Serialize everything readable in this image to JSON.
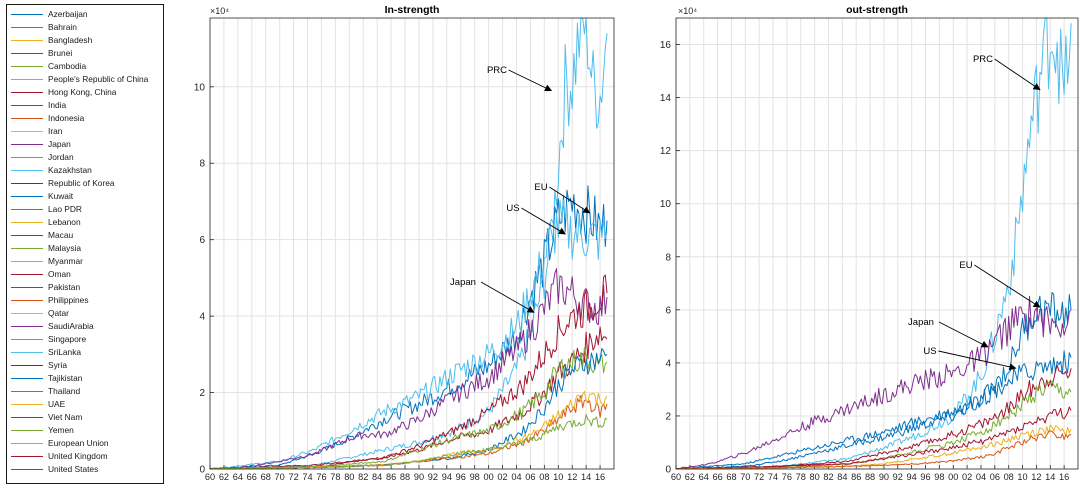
{
  "legend": [
    {
      "name": "Azerbaijan",
      "color": "#0072bd"
    },
    {
      "name": "Bahrain",
      "color": "#d95319"
    },
    {
      "name": "Bangladesh",
      "color": "#edb120"
    },
    {
      "name": "Brunei",
      "color": "#7e2f8e"
    },
    {
      "name": "Cambodia",
      "color": "#77ac30"
    },
    {
      "name": "People's Republic of China",
      "color": "#4dbeee"
    },
    {
      "name": "Hong Kong, China",
      "color": "#a2142f"
    },
    {
      "name": "India",
      "color": "#0072bd"
    },
    {
      "name": "Indonesia",
      "color": "#d95319"
    },
    {
      "name": "Iran",
      "color": "#edb120"
    },
    {
      "name": "Japan",
      "color": "#7e2f8e"
    },
    {
      "name": "Jordan",
      "color": "#77ac30"
    },
    {
      "name": "Kazakhstan",
      "color": "#4dbeee"
    },
    {
      "name": "Republic of Korea",
      "color": "#a2142f"
    },
    {
      "name": "Kuwait",
      "color": "#0072bd"
    },
    {
      "name": "Lao PDR",
      "color": "#d95319"
    },
    {
      "name": "Lebanon",
      "color": "#edb120"
    },
    {
      "name": "Macau",
      "color": "#7e2f8e"
    },
    {
      "name": "Malaysia",
      "color": "#77ac30"
    },
    {
      "name": "Myanmar",
      "color": "#4dbeee"
    },
    {
      "name": "Oman",
      "color": "#a2142f"
    },
    {
      "name": "Pakistan",
      "color": "#0072bd"
    },
    {
      "name": "Philippines",
      "color": "#d95319"
    },
    {
      "name": "Qatar",
      "color": "#edb120"
    },
    {
      "name": "SaudiArabia",
      "color": "#7e2f8e"
    },
    {
      "name": "Singapore",
      "color": "#77ac30"
    },
    {
      "name": "SriLanka",
      "color": "#4dbeee"
    },
    {
      "name": "Syria",
      "color": "#a2142f"
    },
    {
      "name": "Tajikistan",
      "color": "#0072bd"
    },
    {
      "name": "Thailand",
      "color": "#d95319"
    },
    {
      "name": "UAE",
      "color": "#edb120"
    },
    {
      "name": "Viet Nam",
      "color": "#7e2f8e"
    },
    {
      "name": "Yemen",
      "color": "#77ac30"
    },
    {
      "name": "European Union",
      "color": "#4dbeee"
    },
    {
      "name": "United Kingdom",
      "color": "#a2142f"
    },
    {
      "name": "United States",
      "color": "#0072bd"
    }
  ],
  "chart_data": [
    {
      "type": "line",
      "title": "In-strength",
      "exponent_label": "×10⁴",
      "xlabel": "",
      "ylabel": "",
      "xlim": [
        1960,
        2018
      ],
      "ylim": [
        0,
        11.8
      ],
      "x_ticks": [
        "60",
        "62",
        "64",
        "66",
        "68",
        "70",
        "72",
        "74",
        "76",
        "78",
        "80",
        "82",
        "84",
        "86",
        "88",
        "90",
        "92",
        "94",
        "96",
        "98",
        "00",
        "02",
        "04",
        "06",
        "08",
        "10",
        "12",
        "14",
        "16"
      ],
      "y_ticks": [
        0,
        2,
        4,
        6,
        8,
        10
      ],
      "grid": true,
      "series": [
        {
          "name": "People's Republic of China",
          "color": "#4dbeee",
          "x": [
            1960,
            1975,
            1985,
            1990,
            1995,
            2000,
            2004,
            2006,
            2008,
            2009,
            2010,
            2011,
            2012,
            2013,
            2014,
            2015,
            2016,
            2017
          ],
          "y": [
            0,
            0.1,
            0.5,
            0.7,
            1.0,
            1.5,
            2.6,
            3.5,
            5.0,
            6.0,
            8.0,
            10.0,
            10.2,
            11.3,
            11.8,
            10.0,
            9.8,
            11.4
          ]
        },
        {
          "name": "European Union",
          "color": "#0072bd",
          "x": [
            1960,
            1970,
            1975,
            1980,
            1985,
            1990,
            1995,
            2000,
            2004,
            2006,
            2008,
            2009,
            2010,
            2012,
            2014,
            2016,
            2017
          ],
          "y": [
            0,
            0.1,
            0.4,
            0.8,
            1.3,
            1.7,
            2.2,
            2.7,
            3.5,
            4.5,
            5.4,
            6.0,
            6.5,
            7.0,
            6.7,
            6.3,
            6.5
          ]
        },
        {
          "name": "United States",
          "color": "#4dbeee",
          "x": [
            1960,
            1970,
            1975,
            1980,
            1985,
            1990,
            1995,
            2000,
            2004,
            2006,
            2008,
            2009,
            2010,
            2012,
            2014,
            2016,
            2017
          ],
          "y": [
            0,
            0.2,
            0.5,
            1.0,
            1.5,
            1.9,
            2.5,
            3.0,
            3.7,
            4.6,
            5.5,
            6.1,
            6.4,
            6.2,
            6.1,
            6.0,
            6.2
          ]
        },
        {
          "name": "Japan",
          "color": "#7e2f8e",
          "x": [
            1960,
            1965,
            1970,
            1975,
            1980,
            1982,
            1985,
            1990,
            1995,
            2000,
            2004,
            2006,
            2008,
            2009,
            2010,
            2012,
            2014,
            2016,
            2017
          ],
          "y": [
            0,
            0.05,
            0.2,
            0.4,
            0.8,
            0.9,
            0.9,
            1.3,
            1.9,
            2.4,
            3.1,
            3.6,
            4.2,
            4.5,
            4.8,
            4.6,
            4.3,
            4.2,
            4.5
          ]
        },
        {
          "name": "Republic of Korea",
          "color": "#a2142f",
          "x": [
            1960,
            1975,
            1985,
            1990,
            1995,
            2000,
            2005,
            2008,
            2010,
            2012,
            2014,
            2016,
            2017
          ],
          "y": [
            0,
            0.05,
            0.3,
            0.6,
            1.0,
            1.5,
            2.2,
            3.0,
            3.6,
            4.0,
            4.2,
            4.5,
            4.6
          ]
        },
        {
          "name": "United Kingdom",
          "color": "#a2142f",
          "x": [
            1960,
            1975,
            1985,
            1990,
            1995,
            2000,
            2005,
            2008,
            2010,
            2012,
            2014,
            2016,
            2017
          ],
          "y": [
            0,
            0.1,
            0.3,
            0.5,
            0.8,
            1.0,
            1.5,
            2.0,
            2.5,
            2.8,
            3.2,
            3.6,
            3.4
          ]
        },
        {
          "name": "Singapore",
          "color": "#77ac30",
          "x": [
            1960,
            1975,
            1985,
            1990,
            1995,
            2000,
            2005,
            2008,
            2010,
            2012,
            2014,
            2016,
            2017
          ],
          "y": [
            0,
            0.05,
            0.2,
            0.5,
            0.8,
            1.0,
            1.5,
            2.0,
            2.6,
            2.8,
            2.9,
            2.7,
            2.8
          ]
        },
        {
          "name": "India",
          "color": "#0072bd",
          "x": [
            1960,
            1975,
            1985,
            1990,
            1995,
            2000,
            2005,
            2008,
            2010,
            2012,
            2014,
            2016,
            2017
          ],
          "y": [
            0,
            0.05,
            0.1,
            0.2,
            0.3,
            0.5,
            1.0,
            1.6,
            2.2,
            2.6,
            2.8,
            2.9,
            3.0
          ]
        },
        {
          "name": "Indonesia",
          "color": "#d95319",
          "x": [
            1960,
            1975,
            1985,
            1990,
            1995,
            2000,
            2005,
            2008,
            2010,
            2012,
            2014,
            2016,
            2017
          ],
          "y": [
            0,
            0.05,
            0.1,
            0.2,
            0.3,
            0.4,
            0.7,
            1.0,
            1.3,
            1.6,
            1.8,
            1.5,
            1.7
          ]
        },
        {
          "name": "Thailand",
          "color": "#edb120",
          "x": [
            1960,
            1975,
            1985,
            1990,
            1995,
            2000,
            2005,
            2008,
            2010,
            2012,
            2014,
            2016,
            2017
          ],
          "y": [
            0,
            0.05,
            0.1,
            0.2,
            0.4,
            0.5,
            0.8,
            1.1,
            1.4,
            1.7,
            2.0,
            1.8,
            1.9
          ]
        },
        {
          "name": "Malaysia",
          "color": "#77ac30",
          "x": [
            1960,
            1975,
            1985,
            1990,
            1995,
            2000,
            2005,
            2008,
            2010,
            2012,
            2014,
            2016,
            2017
          ],
          "y": [
            0,
            0.05,
            0.1,
            0.2,
            0.4,
            0.5,
            0.7,
            0.9,
            1.1,
            1.2,
            1.3,
            1.2,
            1.3
          ]
        }
      ],
      "annotations": [
        "PRC",
        "EU",
        "US",
        "Japan"
      ]
    },
    {
      "type": "line",
      "title": "out-strength",
      "exponent_label": "×10⁴",
      "xlabel": "",
      "ylabel": "",
      "xlim": [
        1960,
        2018
      ],
      "ylim": [
        0,
        17
      ],
      "x_ticks": [
        "60",
        "62",
        "64",
        "66",
        "68",
        "70",
        "72",
        "74",
        "76",
        "78",
        "80",
        "82",
        "84",
        "86",
        "88",
        "90",
        "92",
        "94",
        "96",
        "98",
        "00",
        "02",
        "04",
        "06",
        "08",
        "10",
        "12",
        "14",
        "16"
      ],
      "y_ticks": [
        0,
        2,
        4,
        6,
        8,
        10,
        12,
        14,
        16
      ],
      "grid": true,
      "series": [
        {
          "name": "People's Republic of China",
          "color": "#4dbeee",
          "x": [
            1960,
            1975,
            1985,
            1990,
            1995,
            2000,
            2004,
            2006,
            2008,
            2009,
            2010,
            2011,
            2012,
            2013,
            2014,
            2015,
            2016,
            2017
          ],
          "y": [
            0,
            0.1,
            0.4,
            0.8,
            1.3,
            2.0,
            3.5,
            5.0,
            7.0,
            8.5,
            10.5,
            12.5,
            14.0,
            15.5,
            16.5,
            16.2,
            14.0,
            16.8
          ]
        },
        {
          "name": "European Union",
          "color": "#0072bd",
          "x": [
            1960,
            1970,
            1975,
            1980,
            1985,
            1990,
            1995,
            2000,
            2004,
            2006,
            2008,
            2009,
            2010,
            2012,
            2014,
            2016,
            2017
          ],
          "y": [
            0,
            0.1,
            0.3,
            0.6,
            0.9,
            1.2,
            1.6,
            2.0,
            2.6,
            3.2,
            3.8,
            4.5,
            5.2,
            6.0,
            6.0,
            5.8,
            6.0
          ]
        },
        {
          "name": "Japan",
          "color": "#7e2f8e",
          "x": [
            1960,
            1965,
            1970,
            1975,
            1980,
            1985,
            1990,
            1995,
            2000,
            2004,
            2006,
            2008,
            2010,
            2012,
            2014,
            2016,
            2017
          ],
          "y": [
            0,
            0.2,
            0.6,
            1.2,
            1.8,
            2.3,
            2.8,
            3.3,
            3.6,
            4.2,
            4.8,
            5.3,
            5.8,
            5.9,
            5.4,
            5.6,
            6.0
          ]
        },
        {
          "name": "United States",
          "color": "#0072bd",
          "x": [
            1960,
            1970,
            1975,
            1980,
            1985,
            1990,
            1995,
            2000,
            2004,
            2006,
            2008,
            2010,
            2012,
            2014,
            2016,
            2017
          ],
          "y": [
            0,
            0.2,
            0.5,
            0.8,
            1.1,
            1.4,
            1.8,
            2.2,
            2.6,
            3.0,
            3.3,
            3.6,
            3.8,
            3.9,
            4.0,
            4.2
          ]
        },
        {
          "name": "Republic of Korea",
          "color": "#a2142f",
          "x": [
            1960,
            1975,
            1985,
            1990,
            1995,
            2000,
            2005,
            2008,
            2010,
            2012,
            2014,
            2016,
            2017
          ],
          "y": [
            0,
            0.1,
            0.3,
            0.6,
            0.9,
            1.3,
            1.8,
            2.3,
            2.8,
            3.2,
            3.5,
            3.6,
            3.8
          ]
        },
        {
          "name": "Singapore",
          "color": "#77ac30",
          "x": [
            1960,
            1975,
            1985,
            1990,
            1995,
            2000,
            2005,
            2008,
            2010,
            2012,
            2014,
            2016,
            2017
          ],
          "y": [
            0,
            0.05,
            0.2,
            0.4,
            0.7,
            1.0,
            1.5,
            2.0,
            2.4,
            2.8,
            3.0,
            2.8,
            2.9
          ]
        },
        {
          "name": "United Kingdom",
          "color": "#a2142f",
          "x": [
            1960,
            1975,
            1985,
            1990,
            1995,
            2000,
            2005,
            2008,
            2010,
            2012,
            2014,
            2016,
            2017
          ],
          "y": [
            0,
            0.1,
            0.2,
            0.4,
            0.6,
            0.8,
            1.1,
            1.4,
            1.6,
            1.8,
            2.0,
            2.1,
            2.2
          ]
        },
        {
          "name": "Thailand",
          "color": "#edb120",
          "x": [
            1960,
            1975,
            1985,
            1990,
            1995,
            2000,
            2005,
            2008,
            2010,
            2012,
            2014,
            2016,
            2017
          ],
          "y": [
            0,
            0.05,
            0.1,
            0.2,
            0.4,
            0.6,
            0.9,
            1.1,
            1.3,
            1.4,
            1.5,
            1.4,
            1.5
          ]
        },
        {
          "name": "India",
          "color": "#d95319",
          "x": [
            1960,
            1975,
            1985,
            1990,
            1995,
            2000,
            2005,
            2008,
            2010,
            2012,
            2014,
            2016,
            2017
          ],
          "y": [
            0,
            0.05,
            0.1,
            0.15,
            0.2,
            0.3,
            0.5,
            0.8,
            1.0,
            1.2,
            1.3,
            1.2,
            1.3
          ]
        }
      ],
      "annotations": [
        "PRC",
        "EU",
        "Japan",
        "US"
      ]
    }
  ]
}
